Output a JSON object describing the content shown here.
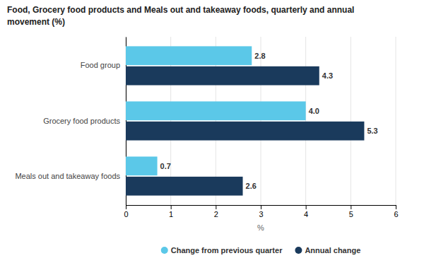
{
  "chart_data": {
    "type": "bar",
    "orientation": "horizontal",
    "title": "Food, Grocery food products and Meals out and takeaway foods, quarterly and annual\nmovement (%)",
    "categories": [
      "Meals out and takeaway foods",
      "Grocery food products",
      "Food group"
    ],
    "series": [
      {
        "name": "Change from previous quarter",
        "color": "#5bc8e8",
        "values": [
          0.7,
          4.0,
          2.8
        ],
        "value_labels": [
          "0.7",
          "4.0",
          "2.8"
        ]
      },
      {
        "name": "Annual change",
        "color": "#1a3a5c",
        "values": [
          2.6,
          5.3,
          4.3
        ],
        "value_labels": [
          "2.6",
          "5.3",
          "4.3"
        ]
      }
    ],
    "xlabel": "%",
    "xlim": [
      0,
      6
    ],
    "xticks": [
      0,
      1,
      2,
      3,
      4,
      5,
      6
    ],
    "grid": true,
    "data_labels": true,
    "legend": "bottom"
  }
}
